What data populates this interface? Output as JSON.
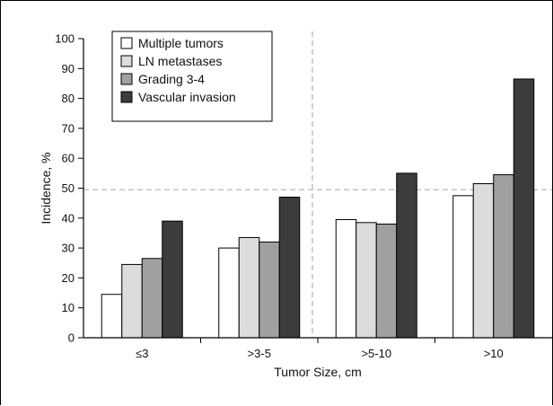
{
  "chart_data": {
    "type": "bar",
    "categories": [
      "≤3",
      ">3-5",
      ">5-10",
      ">10"
    ],
    "series": [
      {
        "name": "Multiple tumors",
        "values": [
          14.5,
          30,
          39.5,
          47.5
        ],
        "color": "#ffffff"
      },
      {
        "name": "LN metastases",
        "values": [
          24.5,
          33.5,
          38.5,
          51.5
        ],
        "color": "#dcdcdc"
      },
      {
        "name": "Grading 3-4",
        "values": [
          26.5,
          32,
          38,
          54.5
        ],
        "color": "#a0a0a0"
      },
      {
        "name": "Vascular invasion",
        "values": [
          39,
          47,
          55,
          86.5
        ],
        "color": "#3c3c3c"
      }
    ],
    "xlabel": "Tumor Size, cm",
    "ylabel": "Incidence, %",
    "ylim": [
      0,
      100
    ],
    "yticks": [
      0,
      10,
      20,
      30,
      40,
      50,
      60,
      70,
      80,
      90,
      100
    ],
    "reference_lines": {
      "horizontal_y": 49.5,
      "vertical_between": [
        ">3-5"
      ]
    },
    "legend": {
      "position": "top-left"
    },
    "grid": false
  }
}
